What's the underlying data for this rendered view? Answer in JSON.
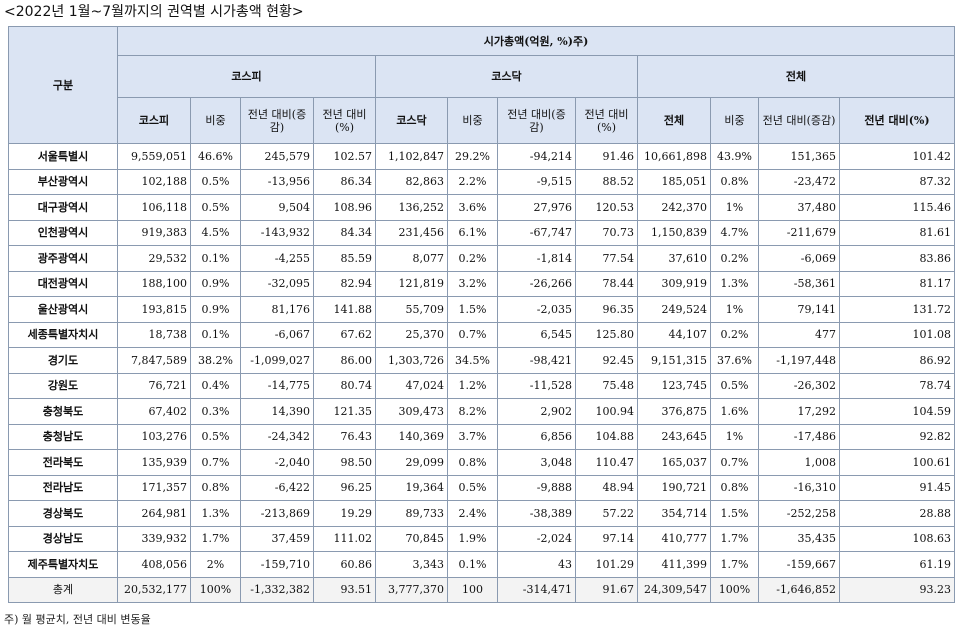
{
  "title": "<2022년 1월~7월까지의 권역별 시가총액 현황>",
  "header": {
    "group": "구분",
    "top": "시가총액(억원, %)주)",
    "sections": [
      "코스피",
      "코스닥",
      "전체"
    ],
    "cols": [
      "코스피",
      "비중",
      "전년 대비(증감)",
      "전년 대비(%)",
      "코스닥",
      "비중",
      "전년 대비(증감)",
      "전년 대비(%)",
      "전체",
      "비중",
      "전년 대비(증감)",
      "전년 대비(%)"
    ]
  },
  "rows": [
    [
      "서울특별시",
      "9,559,051",
      "46.6%",
      "245,579",
      "102.57",
      "1,102,847",
      "29.2%",
      "-94,214",
      "91.46",
      "10,661,898",
      "43.9%",
      "151,365",
      "101.42"
    ],
    [
      "부산광역시",
      "102,188",
      "0.5%",
      "-13,956",
      "86.34",
      "82,863",
      "2.2%",
      "-9,515",
      "88.52",
      "185,051",
      "0.8%",
      "-23,472",
      "87.32"
    ],
    [
      "대구광역시",
      "106,118",
      "0.5%",
      "9,504",
      "108.96",
      "136,252",
      "3.6%",
      "27,976",
      "120.53",
      "242,370",
      "1%",
      "37,480",
      "115.46"
    ],
    [
      "인천광역시",
      "919,383",
      "4.5%",
      "-143,932",
      "84.34",
      "231,456",
      "6.1%",
      "-67,747",
      "70.73",
      "1,150,839",
      "4.7%",
      "-211,679",
      "81.61"
    ],
    [
      "광주광역시",
      "29,532",
      "0.1%",
      "-4,255",
      "85.59",
      "8,077",
      "0.2%",
      "-1,814",
      "77.54",
      "37,610",
      "0.2%",
      "-6,069",
      "83.86"
    ],
    [
      "대전광역시",
      "188,100",
      "0.9%",
      "-32,095",
      "82.94",
      "121,819",
      "3.2%",
      "-26,266",
      "78.44",
      "309,919",
      "1.3%",
      "-58,361",
      "81.17"
    ],
    [
      "울산광역시",
      "193,815",
      "0.9%",
      "81,176",
      "141.88",
      "55,709",
      "1.5%",
      "-2,035",
      "96.35",
      "249,524",
      "1%",
      "79,141",
      "131.72"
    ],
    [
      "세종특별자치시",
      "18,738",
      "0.1%",
      "-6,067",
      "67.62",
      "25,370",
      "0.7%",
      "6,545",
      "125.80",
      "44,107",
      "0.2%",
      "477",
      "101.08"
    ],
    [
      "경기도",
      "7,847,589",
      "38.2%",
      "-1,099,027",
      "86.00",
      "1,303,726",
      "34.5%",
      "-98,421",
      "92.45",
      "9,151,315",
      "37.6%",
      "-1,197,448",
      "86.92"
    ],
    [
      "강원도",
      "76,721",
      "0.4%",
      "-14,775",
      "80.74",
      "47,024",
      "1.2%",
      "-11,528",
      "75.48",
      "123,745",
      "0.5%",
      "-26,302",
      "78.74"
    ],
    [
      "충청북도",
      "67,402",
      "0.3%",
      "14,390",
      "121.35",
      "309,473",
      "8.2%",
      "2,902",
      "100.94",
      "376,875",
      "1.6%",
      "17,292",
      "104.59"
    ],
    [
      "충청남도",
      "103,276",
      "0.5%",
      "-24,342",
      "76.43",
      "140,369",
      "3.7%",
      "6,856",
      "104.88",
      "243,645",
      "1%",
      "-17,486",
      "92.82"
    ],
    [
      "전라북도",
      "135,939",
      "0.7%",
      "-2,040",
      "98.50",
      "29,099",
      "0.8%",
      "3,048",
      "110.47",
      "165,037",
      "0.7%",
      "1,008",
      "100.61"
    ],
    [
      "전라남도",
      "171,357",
      "0.8%",
      "-6,422",
      "96.25",
      "19,364",
      "0.5%",
      "-9,888",
      "48.94",
      "190,721",
      "0.8%",
      "-16,310",
      "91.45"
    ],
    [
      "경상북도",
      "264,981",
      "1.3%",
      "-213,869",
      "19.29",
      "89,733",
      "2.4%",
      "-38,389",
      "57.22",
      "354,714",
      "1.5%",
      "-252,258",
      "28.88"
    ],
    [
      "경상남도",
      "339,932",
      "1.7%",
      "37,459",
      "111.02",
      "70,845",
      "1.9%",
      "-2,024",
      "97.14",
      "410,777",
      "1.7%",
      "35,435",
      "108.63"
    ],
    [
      "제주특별자치도",
      "408,056",
      "2%",
      "-159,710",
      "60.86",
      "3,343",
      "0.1%",
      "43",
      "101.29",
      "411,399",
      "1.7%",
      "-159,667",
      "61.19"
    ]
  ],
  "total": [
    "총계",
    "20,532,177",
    "100%",
    "-1,332,382",
    "93.51",
    "3,777,370",
    "100",
    "-314,471",
    "91.67",
    "24,309,547",
    "100%",
    "-1,646,852",
    "93.23"
  ],
  "note": "주) 월 평균치, 전년 대비 변동율"
}
